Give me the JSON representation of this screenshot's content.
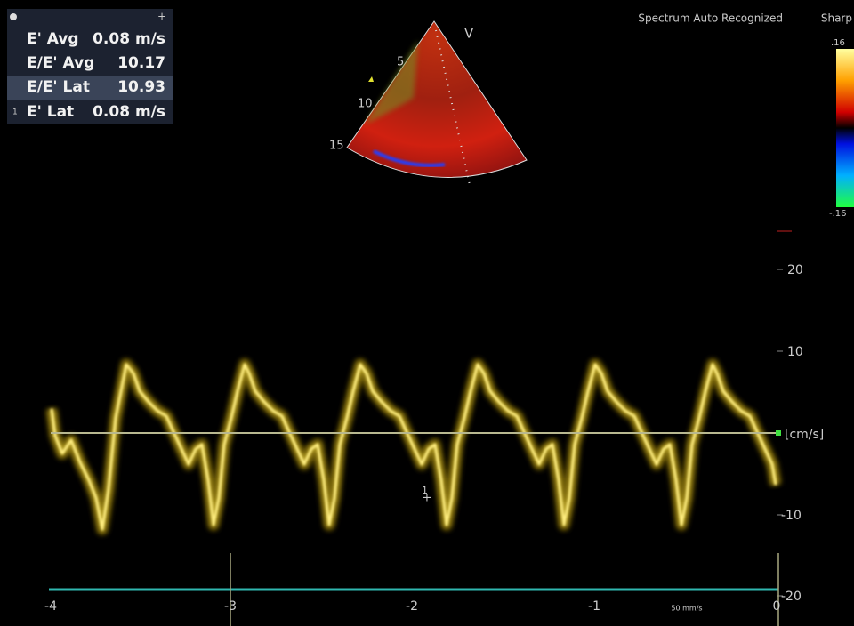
{
  "measurements": {
    "rows": [
      [
        "E' Avg",
        "0.08 m/s"
      ],
      [
        "E/E' Avg",
        "10.17"
      ],
      [
        "E/E' Lat",
        "10.93"
      ],
      [
        "E' Lat",
        "0.08 m/s"
      ]
    ],
    "row_marker": "1"
  },
  "status": {
    "mode": "Spectrum Auto Recognized",
    "filter": "Sharp"
  },
  "color_bar": {
    "top": ".16",
    "bottom": "-.16"
  },
  "sector": {
    "mode": "V",
    "depths": [
      "5",
      "10",
      "15"
    ]
  },
  "velocity_axis": {
    "labels": [
      "20",
      "10",
      "[cm/s]",
      "-10",
      "-20"
    ]
  },
  "time_axis": {
    "labels": [
      "-4",
      "-3",
      "-2",
      "-1",
      "0"
    ],
    "sweep": "50 mm/s"
  },
  "cursor": {
    "label": "1"
  }
}
